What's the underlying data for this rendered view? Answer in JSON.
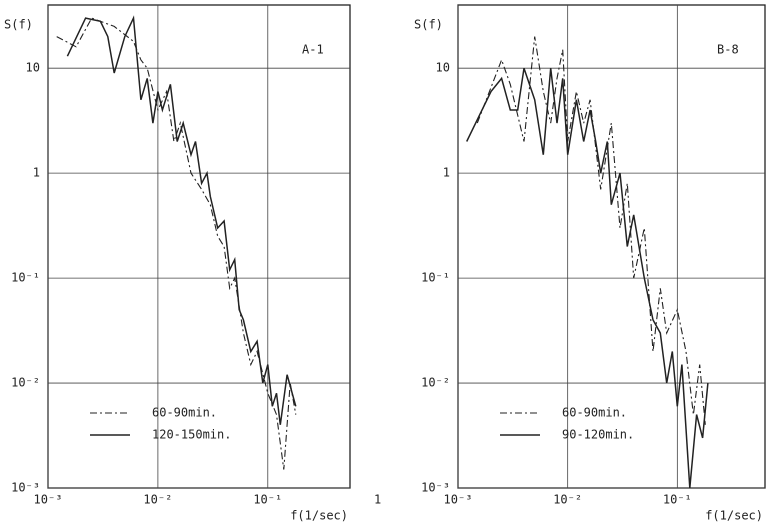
{
  "chart_data": [
    {
      "type": "line",
      "annotation": "A-1",
      "xlabel": "f(1/sec)",
      "ylabel": "S(f)",
      "xscale": "log",
      "yscale": "log",
      "grid": true,
      "legend": "lower left",
      "xlim": [
        0.001,
        0.56
      ],
      "ylim": [
        0.001,
        40
      ],
      "xticks": [
        {
          "value": 0.001,
          "label": "10⁻³"
        },
        {
          "value": 0.01,
          "label": "10⁻²"
        },
        {
          "value": 0.1,
          "label": "10⁻¹"
        },
        1
      ],
      "yticks": [
        {
          "value": 0.001,
          "label": "10⁻³"
        },
        {
          "value": 0.01,
          "label": "10⁻²"
        },
        {
          "value": 0.1,
          "label": "10⁻¹"
        },
        1,
        10
      ],
      "series": [
        {
          "name": "60-90min.",
          "color": "#222",
          "linestyle": "dashdot",
          "x": [
            0.0012,
            0.0018,
            0.0025,
            0.004,
            0.006,
            0.007,
            0.008,
            0.01,
            0.012,
            0.014,
            0.016,
            0.02,
            0.025,
            0.03,
            0.035,
            0.04,
            0.045,
            0.05,
            0.06,
            0.07,
            0.08,
            0.1,
            0.12,
            0.14,
            0.16,
            0.18
          ],
          "values": [
            20,
            16,
            30,
            25,
            18,
            12,
            10,
            4,
            6,
            2,
            3,
            1,
            0.7,
            0.5,
            0.25,
            0.2,
            0.08,
            0.1,
            0.03,
            0.015,
            0.02,
            0.008,
            0.005,
            0.0015,
            0.01,
            0.005
          ]
        },
        {
          "name": "120-150min.",
          "color": "#222",
          "linestyle": "solid",
          "x": [
            0.0015,
            0.0022,
            0.003,
            0.0035,
            0.004,
            0.005,
            0.006,
            0.007,
            0.008,
            0.009,
            0.01,
            0.011,
            0.013,
            0.015,
            0.017,
            0.02,
            0.022,
            0.025,
            0.028,
            0.03,
            0.035,
            0.04,
            0.045,
            0.05,
            0.055,
            0.06,
            0.07,
            0.08,
            0.09,
            0.1,
            0.11,
            0.12,
            0.13,
            0.15,
            0.18
          ],
          "values": [
            13,
            30,
            28,
            20,
            9,
            20,
            30,
            5,
            8,
            3,
            6,
            4,
            7,
            2,
            3,
            1.5,
            2,
            0.8,
            1,
            0.6,
            0.3,
            0.35,
            0.12,
            0.15,
            0.05,
            0.04,
            0.02,
            0.025,
            0.01,
            0.015,
            0.006,
            0.008,
            0.004,
            0.012,
            0.006
          ]
        }
      ]
    },
    {
      "type": "line",
      "annotation": "B-8",
      "xlabel": "f(1/sec)",
      "ylabel": "S(f)",
      "xscale": "log",
      "yscale": "log",
      "grid": true,
      "legend": "lower left",
      "xlim": [
        0.001,
        0.63
      ],
      "ylim": [
        0.001,
        40
      ],
      "xticks": [
        {
          "value": 0.001,
          "label": "10⁻³"
        },
        {
          "value": 0.01,
          "label": "10⁻²"
        },
        {
          "value": 0.1,
          "label": "10⁻¹"
        }
      ],
      "yticks": [
        {
          "value": 0.001,
          "label": "10⁻³"
        },
        {
          "value": 0.01,
          "label": "10⁻²"
        },
        {
          "value": 0.1,
          "label": "10⁻¹"
        },
        1,
        10
      ],
      "series": [
        {
          "name": "60-90min.",
          "color": "#222",
          "linestyle": "dashdot",
          "x": [
            0.0015,
            0.0025,
            0.003,
            0.004,
            0.005,
            0.006,
            0.007,
            0.008,
            0.009,
            0.01,
            0.012,
            0.014,
            0.016,
            0.02,
            0.025,
            0.03,
            0.035,
            0.04,
            0.05,
            0.06,
            0.07,
            0.08,
            0.1,
            0.12,
            0.14,
            0.16,
            0.18
          ],
          "values": [
            3,
            12,
            7,
            2,
            20,
            6,
            3,
            8,
            15,
            2,
            6,
            3,
            5,
            0.7,
            3,
            0.3,
            0.8,
            0.1,
            0.3,
            0.02,
            0.08,
            0.03,
            0.05,
            0.02,
            0.005,
            0.015,
            0.004
          ]
        },
        {
          "name": "90-120min.",
          "color": "#222",
          "linestyle": "solid",
          "x": [
            0.0012,
            0.002,
            0.0025,
            0.003,
            0.0035,
            0.004,
            0.005,
            0.006,
            0.007,
            0.008,
            0.009,
            0.01,
            0.012,
            0.014,
            0.016,
            0.018,
            0.02,
            0.023,
            0.025,
            0.03,
            0.035,
            0.04,
            0.05,
            0.06,
            0.07,
            0.08,
            0.09,
            0.1,
            0.11,
            0.13,
            0.15,
            0.17,
            0.19
          ],
          "values": [
            2,
            6,
            8,
            4,
            4,
            10,
            5,
            1.5,
            10,
            3,
            8,
            1.5,
            5,
            2,
            4,
            2,
            1,
            2,
            0.5,
            1,
            0.2,
            0.4,
            0.1,
            0.04,
            0.03,
            0.01,
            0.02,
            0.006,
            0.015,
            0.001,
            0.005,
            0.003,
            0.01
          ]
        }
      ]
    }
  ]
}
